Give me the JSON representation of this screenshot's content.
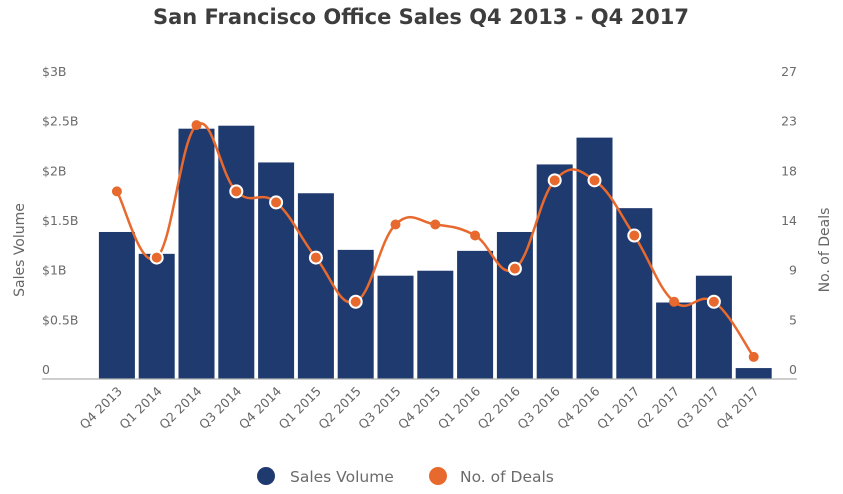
{
  "chart_data": {
    "type": "bar",
    "title": "San Francisco Office Sales Q4 2013 - Q4 2017",
    "categories": [
      "Q4 2013",
      "Q1 2014",
      "Q2 2014",
      "Q3 2014",
      "Q4 2014",
      "Q1 2015",
      "Q2 2015",
      "Q3 2015",
      "Q4 2015",
      "Q1 2016",
      "Q2 2016",
      "Q3 2016",
      "Q4 2016",
      "Q1 2017",
      "Q2 2017",
      "Q3 2017",
      "Q4 2017"
    ],
    "series": [
      {
        "name": "Sales Volume",
        "type": "bar",
        "axis": "left",
        "unit": "billion USD",
        "color": "#1f3a6e",
        "values": [
          1.48,
          1.26,
          2.52,
          2.55,
          2.18,
          1.87,
          1.3,
          1.04,
          1.09,
          1.29,
          1.48,
          2.16,
          2.43,
          1.72,
          0.77,
          1.04,
          0.11
        ]
      },
      {
        "name": "No. of Deals",
        "type": "line",
        "axis": "right",
        "smooth": true,
        "color": "#e8692e",
        "values": [
          17,
          11,
          23,
          17,
          16,
          11,
          7,
          14,
          14,
          13,
          10,
          18,
          18,
          13,
          7,
          7,
          2
        ]
      }
    ],
    "y_left": {
      "label": "Sales Volume",
      "range": [
        0,
        3
      ],
      "ticks": [
        0,
        0.5,
        1,
        1.5,
        2,
        2.5,
        3
      ],
      "tick_labels": [
        "0",
        "$0.5B",
        "$1B",
        "$1.5B",
        "$2B",
        "$2.5B",
        "$3B"
      ]
    },
    "y_right": {
      "label": "No. of Deals",
      "range": [
        0,
        27
      ],
      "ticks": [
        0,
        4.5,
        9,
        13.5,
        18,
        22.5,
        27
      ],
      "tick_labels": [
        "0",
        "5",
        "9",
        "14",
        "18",
        "23",
        "27"
      ]
    },
    "xlabel": "",
    "grid": false,
    "legend": {
      "position": "bottom-center",
      "items": [
        "Sales Volume",
        "No. of Deals"
      ]
    }
  }
}
